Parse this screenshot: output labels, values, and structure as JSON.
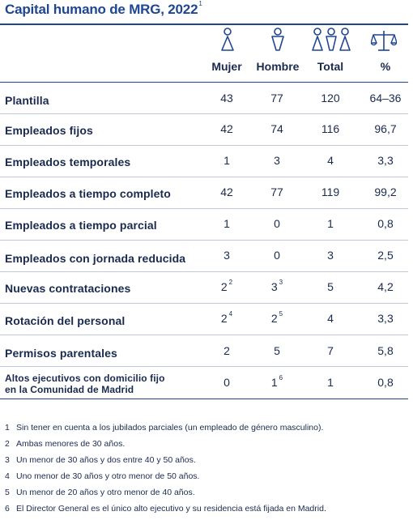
{
  "title": "Capital humano de MRG, 2022",
  "title_note": "1",
  "icons": {
    "mujer": "woman-icon",
    "hombre": "man-icon",
    "total": "group-icon",
    "pct": "balance-scale-icon",
    "color": "#1f4690"
  },
  "columns": [
    "Mujer",
    "Hombre",
    "Total",
    "%"
  ],
  "rows": [
    {
      "label": "Plantilla",
      "mujer": "43",
      "hombre": "77",
      "total": "120",
      "pct": "64–36"
    },
    {
      "label": "Empleados fijos",
      "mujer": "42",
      "hombre": "74",
      "total": "116",
      "pct": "96,7"
    },
    {
      "label": "Empleados temporales",
      "mujer": "1",
      "hombre": "3",
      "total": "4",
      "pct": "3,3"
    },
    {
      "label": "Empleados a tiempo completo",
      "mujer": "42",
      "hombre": "77",
      "total": "119",
      "pct": "99,2"
    },
    {
      "label": "Empleados a tiempo parcial",
      "mujer": "1",
      "hombre": "0",
      "total": "1",
      "pct": "0,8"
    },
    {
      "label": "Empleados con jornada reducida",
      "mujer": "3",
      "hombre": "0",
      "total": "3",
      "pct": "2,5"
    },
    {
      "label": "Nuevas contrataciones",
      "mujer": "2",
      "mujer_note": "2",
      "hombre": "3",
      "hombre_note": "3",
      "total": "5",
      "pct": "4,2"
    },
    {
      "label": "Rotación del personal",
      "mujer": "2",
      "mujer_note": "4",
      "hombre": "2",
      "hombre_note": "5",
      "total": "4",
      "pct": "3,3"
    },
    {
      "label": "Permisos parentales",
      "mujer": "2",
      "hombre": "5",
      "total": "7",
      "pct": "5,8"
    },
    {
      "label_line1": "Altos ejecutivos con domicilio fijo",
      "label_line2": "en la Comunidad de Madrid",
      "mujer": "0",
      "hombre": "1",
      "hombre_note": "6",
      "total": "1",
      "pct": "0,8"
    }
  ],
  "footnotes": [
    {
      "num": "1",
      "text": "Sin tener en cuenta a los jubilados parciales (un empleado de género masculino)."
    },
    {
      "num": "2",
      "text": "Ambas menores de 30 años."
    },
    {
      "num": "3",
      "text": "Un menor de 30 años y dos entre 40 y 50 años."
    },
    {
      "num": "4",
      "text": "Uno menor de 30 años y otro menor de 50 años."
    },
    {
      "num": "5",
      "text": "Un menor de 20 años y otro menor de 40 años."
    },
    {
      "num": "6",
      "text": "El Director General es el único alto ejecutivo y su residencia está fijada en Madrid."
    }
  ]
}
